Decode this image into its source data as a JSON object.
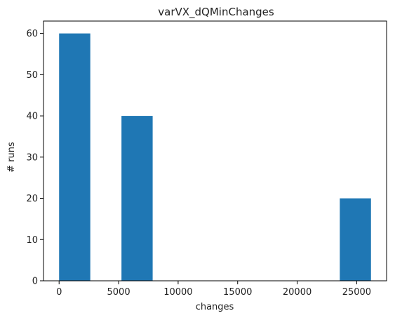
{
  "chart_data": {
    "type": "bar",
    "title": "varVX_dQMinChanges",
    "xlabel": "changes",
    "ylabel": "# runs",
    "xlim": [
      -1310,
      27510
    ],
    "ylim": [
      0,
      63
    ],
    "xticks": [
      0,
      5000,
      10000,
      15000,
      20000,
      25000
    ],
    "yticks": [
      0,
      10,
      20,
      30,
      40,
      50,
      60
    ],
    "bars": [
      {
        "x0": 0,
        "x1": 2620,
        "value": 60
      },
      {
        "x0": 5240,
        "x1": 7860,
        "value": 40
      },
      {
        "x0": 23580,
        "x1": 26200,
        "value": 20
      }
    ],
    "bar_color": "#1f77b4",
    "grid": false,
    "legend": "none"
  }
}
